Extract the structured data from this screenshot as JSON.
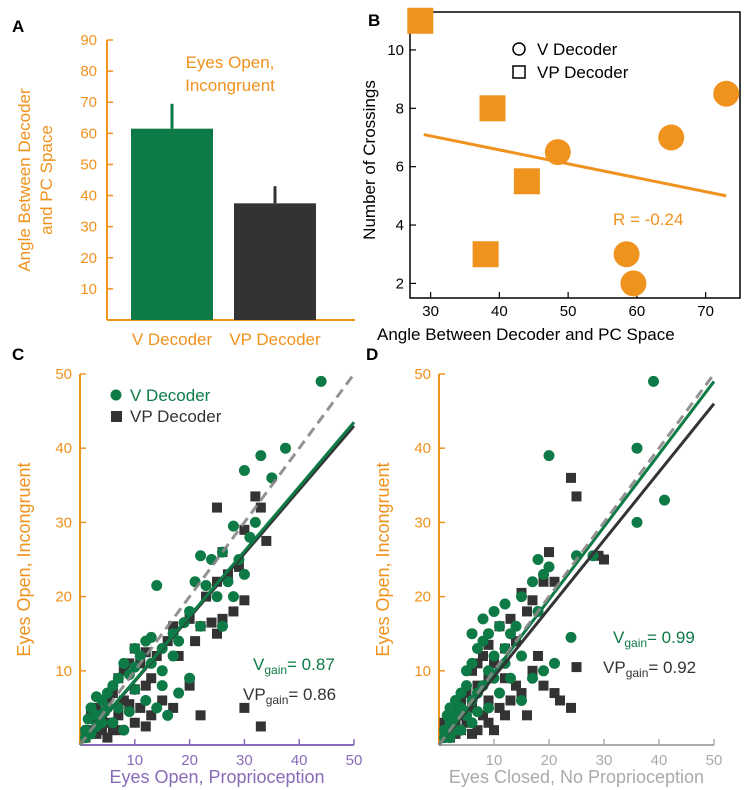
{
  "colors": {
    "orange": "#F0921E",
    "green": "#0E7A46",
    "dark": "#333333",
    "gray": "#888888",
    "purple": "#8A6BB8",
    "lightgray": "#AAAAAA"
  },
  "chart_data": [
    {
      "panel": "A",
      "type": "bar",
      "title": "Eyes Open,\nIncongruent",
      "ylabel": "Angle Between Decoder\nand PC Space",
      "categories": [
        "V Decoder",
        "VP Decoder"
      ],
      "values": [
        61.5,
        37.5
      ],
      "errors": [
        8,
        5.5
      ],
      "bar_colors": [
        "#0E7A46",
        "#333333"
      ],
      "ylim": [
        0,
        90
      ],
      "yticks": [
        10,
        20,
        30,
        40,
        50,
        60,
        70,
        80,
        90
      ]
    },
    {
      "panel": "B",
      "type": "scatter",
      "xlabel": "Angle Between Decoder and PC Space",
      "ylabel": "Number of Crossings",
      "xlim": [
        27,
        75
      ],
      "ylim": [
        1.5,
        11.3
      ],
      "xticks": [
        30,
        40,
        50,
        60,
        70
      ],
      "yticks": [
        2,
        4,
        6,
        8,
        10
      ],
      "series": [
        {
          "name": "V Decoder",
          "marker": "circle",
          "points": [
            [
              48.5,
              6.5
            ],
            [
              58.5,
              3
            ],
            [
              59.5,
              2
            ],
            [
              65,
              7
            ],
            [
              73,
              8.5
            ]
          ]
        },
        {
          "name": "VP Decoder",
          "marker": "square",
          "points": [
            [
              28.5,
              11
            ],
            [
              38,
              3
            ],
            [
              39,
              8
            ],
            [
              44,
              5.5
            ]
          ]
        }
      ],
      "fit": {
        "x": [
          29,
          73
        ],
        "y": [
          7.1,
          5.0
        ]
      },
      "annotation": "R = -0.24"
    },
    {
      "panel": "C",
      "type": "scatter",
      "xlabel": "Eyes Open, Proprioception",
      "ylabel": "Eyes Open, Incongruent",
      "xlim": [
        0,
        50
      ],
      "ylim": [
        0,
        50
      ],
      "xticks": [
        10,
        20,
        30,
        40,
        50
      ],
      "yticks": [
        10,
        20,
        30,
        40,
        50
      ],
      "series": [
        {
          "name": "V Decoder",
          "marker": "circle",
          "points": [
            [
              44,
              49
            ],
            [
              37.5,
              40
            ],
            [
              33,
              39
            ],
            [
              30,
              37
            ],
            [
              35,
              36
            ],
            [
              32,
              30
            ],
            [
              28,
              29.5
            ],
            [
              31,
              28
            ],
            [
              26,
              26
            ],
            [
              22,
              25.5
            ],
            [
              29,
              25
            ],
            [
              24,
              25
            ],
            [
              30,
              23
            ],
            [
              27,
              22
            ],
            [
              25,
              20
            ],
            [
              28,
              20
            ],
            [
              21,
              22
            ],
            [
              23,
              21.5
            ],
            [
              14,
              21.5
            ],
            [
              20,
              18
            ],
            [
              19,
              16.5
            ],
            [
              26,
              16
            ],
            [
              22,
              16
            ],
            [
              17,
              15
            ],
            [
              18,
              14
            ],
            [
              13,
              14.5
            ],
            [
              12,
              14
            ],
            [
              15,
              13
            ],
            [
              10,
              13
            ],
            [
              11,
              12
            ],
            [
              8,
              11
            ],
            [
              13,
              11
            ],
            [
              15,
              10
            ],
            [
              17,
              12
            ],
            [
              9,
              9.5
            ],
            [
              7,
              9
            ],
            [
              6,
              8
            ],
            [
              10,
              7.5
            ],
            [
              5,
              7
            ],
            [
              4,
              6
            ],
            [
              3,
              6.5
            ],
            [
              7,
              5
            ],
            [
              9,
              4.5
            ],
            [
              12,
              6
            ],
            [
              14,
              5
            ],
            [
              16,
              4
            ],
            [
              2,
              5
            ],
            [
              3,
              4
            ],
            [
              4,
              3
            ],
            [
              6,
              3
            ],
            [
              8,
              2
            ],
            [
              1,
              2
            ],
            [
              2,
              1.5
            ],
            [
              3,
              2.5
            ],
            [
              1,
              1
            ],
            [
              5,
              5
            ],
            [
              15,
              8
            ],
            [
              18,
              7
            ],
            [
              20,
              9
            ],
            [
              1.5,
              3.5
            ],
            [
              4.5,
              4.5
            ],
            [
              10,
              10.5
            ]
          ]
        },
        {
          "name": "VP Decoder",
          "marker": "square",
          "points": [
            [
              32,
              33.5
            ],
            [
              33,
              32
            ],
            [
              25,
              32
            ],
            [
              30,
              29
            ],
            [
              26,
              26
            ],
            [
              34,
              27.5
            ],
            [
              29,
              24
            ],
            [
              27,
              23
            ],
            [
              25,
              22
            ],
            [
              23,
              20
            ],
            [
              30,
              19.5
            ],
            [
              28,
              18
            ],
            [
              26,
              17
            ],
            [
              24,
              16.5
            ],
            [
              22,
              16
            ],
            [
              20,
              17
            ],
            [
              21,
              14
            ],
            [
              25,
              15
            ],
            [
              17,
              16
            ],
            [
              18,
              12
            ],
            [
              16,
              14
            ],
            [
              14,
              12
            ],
            [
              12,
              12.5
            ],
            [
              10,
              13
            ],
            [
              11,
              11
            ],
            [
              9,
              11
            ],
            [
              8,
              10
            ],
            [
              7,
              9
            ],
            [
              12,
              8
            ],
            [
              13,
              9
            ],
            [
              10,
              7.5
            ],
            [
              6,
              7
            ],
            [
              5,
              6
            ],
            [
              8,
              6
            ],
            [
              9,
              5.5
            ],
            [
              11,
              5
            ],
            [
              13,
              4
            ],
            [
              15,
              6
            ],
            [
              17,
              5
            ],
            [
              20,
              8
            ],
            [
              22,
              4
            ],
            [
              30,
              5
            ],
            [
              33,
              2.5
            ],
            [
              4,
              4
            ],
            [
              3,
              3
            ],
            [
              5,
              3
            ],
            [
              7,
              4
            ],
            [
              2,
              2
            ],
            [
              4,
              2
            ],
            [
              6,
              2
            ],
            [
              1,
              1
            ],
            [
              2,
              4
            ],
            [
              3,
              5
            ],
            [
              10,
              3
            ],
            [
              12,
              2.5
            ],
            [
              3,
              1.5
            ],
            [
              5,
              1
            ],
            [
              7,
              2
            ]
          ]
        }
      ],
      "lines": [
        {
          "name": "V Decoder fit",
          "x": [
            0,
            50
          ],
          "y": [
            0,
            43.5
          ]
        },
        {
          "name": "VP Decoder fit",
          "x": [
            0,
            50
          ],
          "y": [
            0,
            43
          ]
        },
        {
          "name": "identity",
          "x": [
            0,
            50
          ],
          "y": [
            0,
            50
          ]
        }
      ],
      "annotations": [
        {
          "label": "V",
          "sub": "gain",
          "value": "= 0.87"
        },
        {
          "label": "VP",
          "sub": "gain",
          "value": "= 0.86"
        }
      ]
    },
    {
      "panel": "D",
      "type": "scatter",
      "xlabel": "Eyes Closed, No Proprioception",
      "ylabel": "Eyes Open, Incongruent",
      "xlim": [
        0,
        50
      ],
      "ylim": [
        0,
        50
      ],
      "xticks": [
        10,
        20,
        30,
        40,
        50
      ],
      "yticks": [
        10,
        20,
        30,
        40,
        50
      ],
      "series": [
        {
          "name": "V Decoder",
          "marker": "circle",
          "points": [
            [
              39,
              49
            ],
            [
              41,
              33
            ],
            [
              36,
              40
            ],
            [
              36,
              30
            ],
            [
              20,
              39
            ],
            [
              25,
              25.5
            ],
            [
              28,
              25.5
            ],
            [
              20,
              24
            ],
            [
              18,
              25
            ],
            [
              19,
              23
            ],
            [
              17,
              22
            ],
            [
              18,
              18
            ],
            [
              15,
              20
            ],
            [
              12,
              19
            ],
            [
              10,
              18
            ],
            [
              14,
              16
            ],
            [
              11,
              16
            ],
            [
              9,
              15
            ],
            [
              13,
              15
            ],
            [
              8,
              14
            ],
            [
              7,
              13
            ],
            [
              10,
              12
            ],
            [
              12,
              11
            ],
            [
              15,
              12
            ],
            [
              6,
              11
            ],
            [
              5,
              10
            ],
            [
              9,
              10
            ],
            [
              24,
              14.5
            ],
            [
              17,
              9
            ],
            [
              5,
              8
            ],
            [
              8,
              8
            ],
            [
              4,
              7
            ],
            [
              3,
              6
            ],
            [
              6,
              6
            ],
            [
              7,
              7
            ],
            [
              2,
              5
            ],
            [
              3,
              4
            ],
            [
              4,
              5
            ],
            [
              5,
              4
            ],
            [
              2,
              3
            ],
            [
              1,
              2
            ],
            [
              3,
              2
            ],
            [
              1,
              1
            ],
            [
              2,
              1
            ],
            [
              6,
              3
            ],
            [
              9,
              5
            ],
            [
              11,
              7
            ],
            [
              13,
              9
            ],
            [
              15,
              6
            ],
            [
              19,
              10
            ],
            [
              21,
              11
            ],
            [
              1.5,
              4
            ],
            [
              4,
              2
            ],
            [
              7,
              4.5
            ],
            [
              10,
              9
            ],
            [
              12,
              13
            ],
            [
              8,
              17
            ],
            [
              6,
              15
            ]
          ]
        },
        {
          "name": "VP Decoder",
          "marker": "square",
          "points": [
            [
              24,
              36
            ],
            [
              25,
              33.5
            ],
            [
              30,
              25
            ],
            [
              29,
              25.5
            ],
            [
              20,
              26
            ],
            [
              21,
              22
            ],
            [
              19,
              22
            ],
            [
              15,
              20.5
            ],
            [
              17,
              19.5
            ],
            [
              16,
              18
            ],
            [
              13,
              17
            ],
            [
              11,
              16
            ],
            [
              14,
              14
            ],
            [
              12,
              13
            ],
            [
              9,
              13.5
            ],
            [
              8,
              12
            ],
            [
              10,
              11
            ],
            [
              7,
              11
            ],
            [
              6,
              10
            ],
            [
              9,
              9
            ],
            [
              12,
              9
            ],
            [
              14,
              8
            ],
            [
              17,
              10
            ],
            [
              19,
              8
            ],
            [
              21,
              7
            ],
            [
              22,
              6
            ],
            [
              25,
              10.5
            ],
            [
              16,
              4
            ],
            [
              24,
              5
            ],
            [
              11,
              5
            ],
            [
              9,
              6
            ],
            [
              7,
              8
            ],
            [
              5,
              7
            ],
            [
              4,
              6
            ],
            [
              6,
              5
            ],
            [
              3,
              5
            ],
            [
              5,
              3
            ],
            [
              2,
              4
            ],
            [
              3,
              3
            ],
            [
              4,
              2
            ],
            [
              2,
              2
            ],
            [
              1,
              1
            ],
            [
              2,
              1
            ],
            [
              3,
              1.5
            ],
            [
              7,
              2
            ],
            [
              9,
              3
            ],
            [
              12,
              4
            ],
            [
              13,
              6
            ],
            [
              15,
              7
            ],
            [
              8,
              4
            ],
            [
              6,
              1.5
            ],
            [
              10,
              2
            ],
            [
              1,
              3
            ],
            [
              4,
              4
            ],
            [
              18,
              12
            ]
          ]
        }
      ],
      "lines": [
        {
          "name": "V Decoder fit",
          "x": [
            0,
            50
          ],
          "y": [
            0,
            49
          ]
        },
        {
          "name": "VP Decoder fit",
          "x": [
            0,
            50
          ],
          "y": [
            0,
            46
          ]
        },
        {
          "name": "identity",
          "x": [
            0,
            50
          ],
          "y": [
            0,
            50
          ]
        }
      ],
      "annotations": [
        {
          "label": "V",
          "sub": "gain",
          "value": "= 0.99"
        },
        {
          "label": "VP",
          "sub": "gain",
          "value": "= 0.92"
        }
      ]
    }
  ]
}
